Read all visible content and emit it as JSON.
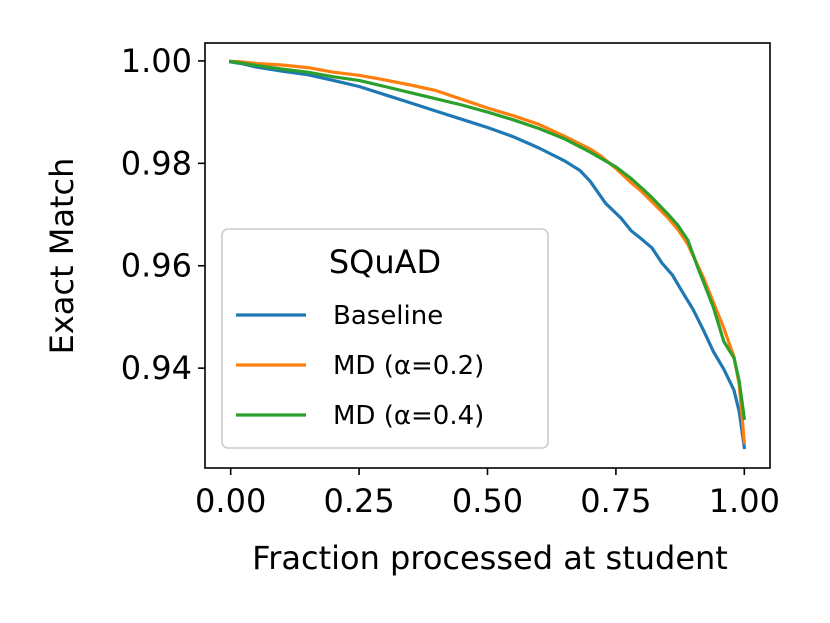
{
  "chart_data": {
    "type": "line",
    "xlabel": "Fraction processed at student",
    "ylabel": "Exact Match",
    "xlim": [
      -0.05,
      1.05
    ],
    "ylim": [
      0.9205,
      1.0035
    ],
    "xticks": [
      0.0,
      0.25,
      0.5,
      0.75,
      1.0
    ],
    "xtick_labels": [
      "0.00",
      "0.25",
      "0.50",
      "0.75",
      "1.00"
    ],
    "yticks": [
      0.94,
      0.96,
      0.98,
      1.0
    ],
    "ytick_labels": [
      "0.94",
      "0.96",
      "0.98",
      "1.00"
    ],
    "grid": false,
    "legend": {
      "title": "SQuAD",
      "placement": "lower-left"
    },
    "series": [
      {
        "name": "Baseline",
        "color": "#1f77b4",
        "x": [
          0,
          0.02,
          0.05,
          0.1,
          0.15,
          0.2,
          0.25,
          0.3,
          0.35,
          0.4,
          0.45,
          0.5,
          0.55,
          0.6,
          0.65,
          0.68,
          0.7,
          0.73,
          0.76,
          0.78,
          0.8,
          0.82,
          0.84,
          0.86,
          0.88,
          0.9,
          0.92,
          0.94,
          0.96,
          0.98,
          0.99,
          1.0
        ],
        "y": [
          0.9998,
          0.9995,
          0.9988,
          0.998,
          0.9973,
          0.9962,
          0.995,
          0.9934,
          0.9918,
          0.9902,
          0.9886,
          0.987,
          0.9852,
          0.983,
          0.9805,
          0.9786,
          0.9765,
          0.9722,
          0.9693,
          0.9668,
          0.9652,
          0.9635,
          0.9605,
          0.9582,
          0.9548,
          0.9515,
          0.9475,
          0.9432,
          0.9398,
          0.9357,
          0.9315,
          0.9245
        ]
      },
      {
        "name": "MD (α=0.2)",
        "color": "#ff7f0e",
        "x": [
          0,
          0.02,
          0.05,
          0.1,
          0.15,
          0.2,
          0.25,
          0.3,
          0.35,
          0.4,
          0.45,
          0.5,
          0.55,
          0.6,
          0.65,
          0.7,
          0.72,
          0.75,
          0.78,
          0.8,
          0.82,
          0.85,
          0.87,
          0.89,
          0.9,
          0.92,
          0.94,
          0.96,
          0.98,
          0.99,
          1.0
        ],
        "y": [
          0.9999,
          0.9998,
          0.9995,
          0.9992,
          0.9987,
          0.9978,
          0.9972,
          0.9963,
          0.9953,
          0.9942,
          0.9925,
          0.9908,
          0.9893,
          0.9876,
          0.9853,
          0.9828,
          0.9815,
          0.979,
          0.9762,
          0.9745,
          0.9725,
          0.9695,
          0.9672,
          0.9642,
          0.962,
          0.9578,
          0.9528,
          0.9478,
          0.9422,
          0.9368,
          0.9255
        ]
      },
      {
        "name": "MD (α=0.4)",
        "color": "#2ca02c",
        "x": [
          0,
          0.02,
          0.05,
          0.1,
          0.15,
          0.2,
          0.25,
          0.3,
          0.35,
          0.4,
          0.45,
          0.5,
          0.55,
          0.6,
          0.65,
          0.7,
          0.75,
          0.78,
          0.8,
          0.82,
          0.85,
          0.87,
          0.89,
          0.91,
          0.92,
          0.94,
          0.96,
          0.98,
          0.99,
          1.0
        ],
        "y": [
          0.9999,
          0.9996,
          0.9991,
          0.9984,
          0.9978,
          0.9969,
          0.9962,
          0.995,
          0.9938,
          0.9926,
          0.9914,
          0.99,
          0.9885,
          0.9868,
          0.9848,
          0.9822,
          0.9793,
          0.977,
          0.9752,
          0.9733,
          0.9702,
          0.968,
          0.965,
          0.9595,
          0.957,
          0.9518,
          0.9452,
          0.942,
          0.9375,
          0.9302
        ]
      }
    ]
  }
}
